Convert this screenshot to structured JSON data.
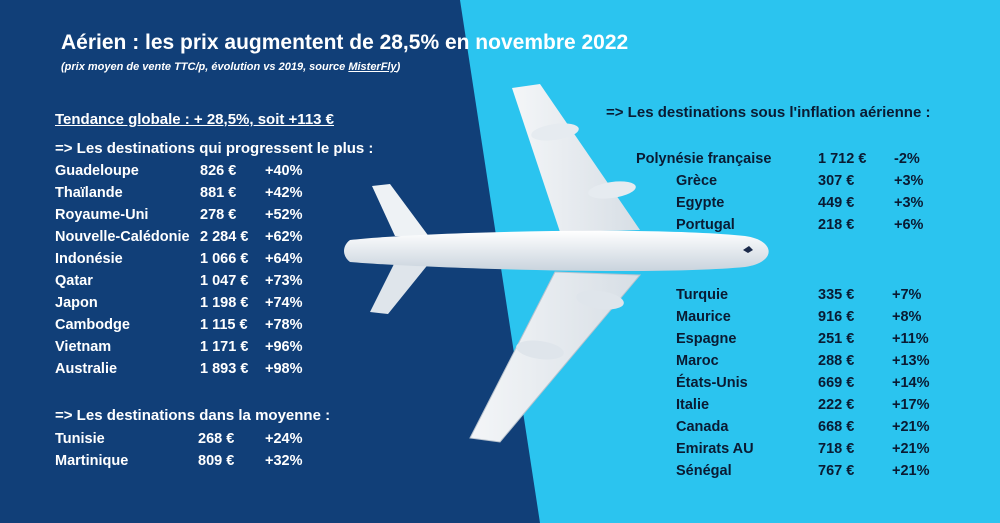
{
  "title": "Aérien : les prix augmentent  de 28,5% en novembre 2022",
  "subtitle_main": "(prix moyen de vente TTC/p, évolution vs 2019, source ",
  "subtitle_source": "MisterFly",
  "subtitle_end": ")",
  "tendance": "Tendance globale : + 28,5%, soit +113 €",
  "section_progress": "=> Les destinations qui progressent le plus :",
  "progress_rows": [
    {
      "name": "Guadeloupe",
      "price": "826 €",
      "change": "+40%"
    },
    {
      "name": "Thaïlande",
      "price": "881 €",
      "change": "+42%"
    },
    {
      "name": "Royaume-Uni",
      "price": "278 €",
      "change": "+52%"
    },
    {
      "name": "Nouvelle-Calédonie",
      "price": "2 284 €",
      "change": "+62%"
    },
    {
      "name": "Indonésie",
      "price": "1 066 €",
      "change": "+64%"
    },
    {
      "name": "Qatar",
      "price": "1 047 €",
      "change": "+73%"
    },
    {
      "name": "Japon",
      "price": "1 198 €",
      "change": "+74%"
    },
    {
      "name": "Cambodge",
      "price": "1 115 €",
      "change": "+78%"
    },
    {
      "name": "Vietnam",
      "price": "1 171 €",
      "change": "+96%"
    },
    {
      "name": "Australie",
      "price": "1 893 €",
      "change": "+98%"
    }
  ],
  "section_average": "=> Les destinations dans la moyenne :",
  "average_rows": [
    {
      "name": "Tunisie",
      "price": "268 €",
      "change": "+24%"
    },
    {
      "name": "Martinique",
      "price": "809 €",
      "change": "+32%"
    }
  ],
  "section_under": "=>  Les destinations sous l'inflation aérienne :",
  "under_rows_a": [
    {
      "name": "Polynésie française",
      "price": "1 712 €",
      "change": "-2%"
    },
    {
      "name": "Grèce",
      "price": "307 €",
      "change": "+3%"
    },
    {
      "name": "Egypte",
      "price": "449 €",
      "change": "+3%"
    },
    {
      "name": "Portugal",
      "price": "218 €",
      "change": "+6%"
    }
  ],
  "under_rows_b": [
    {
      "name": "Turquie",
      "price": "335 €",
      "change": "+7%"
    },
    {
      "name": "Maurice",
      "price": "916 €",
      "change": "+8%"
    },
    {
      "name": "Espagne",
      "price": "251 €",
      "change": "+11%"
    },
    {
      "name": "Maroc",
      "price": "288 €",
      "change": "+13%"
    },
    {
      "name": "États-Unis",
      "price": "669 €",
      "change": "+14%"
    },
    {
      "name": "Italie",
      "price": "222 €",
      "change": "+17%"
    },
    {
      "name": "Canada",
      "price": "668 €",
      "change": "+21%"
    },
    {
      "name": "Emirats AU",
      "price": "718 €",
      "change": "+21%"
    },
    {
      "name": "Sénégal",
      "price": "767 €",
      "change": "+21%"
    }
  ],
  "colors": {
    "dark_blue": "#113f78",
    "light_blue": "#2bc4ef",
    "text_white": "#ffffff",
    "text_dark": "#0a1b33"
  }
}
